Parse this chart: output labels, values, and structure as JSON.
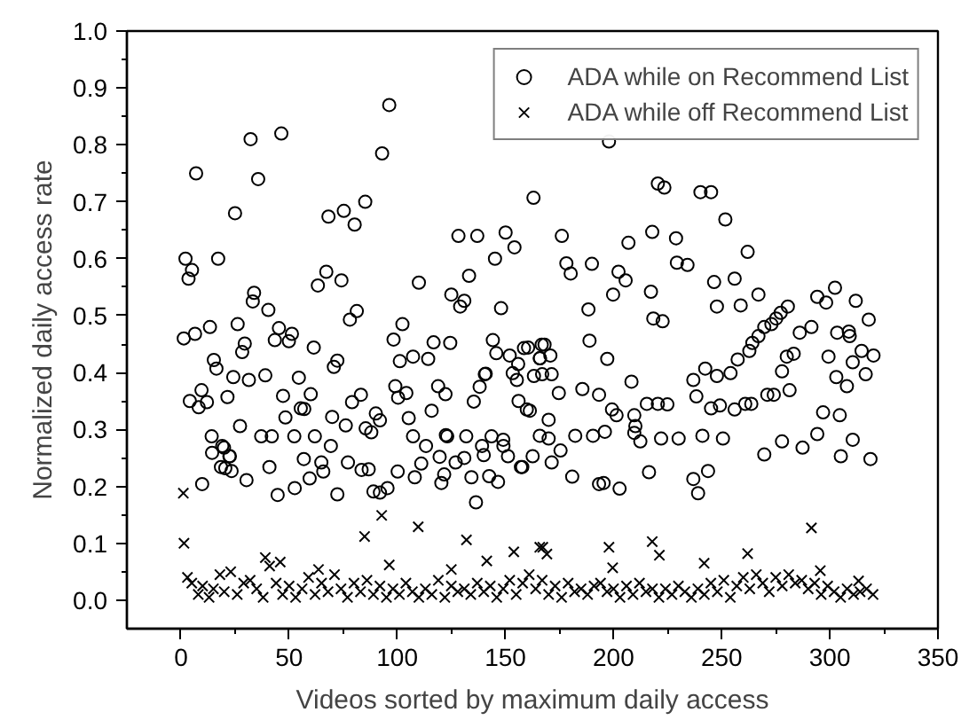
{
  "chart_data": {
    "type": "scatter",
    "xlabel": "Videos sorted by maximum daily access",
    "ylabel": "Normalized daily access rate",
    "xlim": [
      -25,
      350
    ],
    "xticks": [
      0,
      50,
      100,
      150,
      200,
      250,
      300,
      350
    ],
    "ylim": [
      -0.05,
      1.0
    ],
    "yticks": [
      {
        "value": 0,
        "label": "0.0"
      },
      0.1,
      0.2,
      0.3,
      0.4,
      0.5,
      0.6,
      0.7,
      0.8,
      0.9,
      {
        "value": 1,
        "label": "1.0"
      }
    ],
    "grid": false,
    "legend": "top right",
    "series": [
      {
        "name": "ADA while on Recommend List",
        "color": "#000000",
        "marker": "circle",
        "x": [
          96.3,
          46.4,
          32.2,
          7.0,
          93,
          35.7,
          25,
          68.2,
          75.3,
          80.3,
          85.2,
          2.1,
          5.1,
          3.5,
          17.2,
          33.8,
          33.2,
          40.4,
          67.2,
          63.3,
          74.2,
          81.3,
          78.1,
          110,
          128.3,
          137,
          150.1,
          154.2,
          145.2,
          163,
          133.2,
          125,
          129.1,
          131,
          148,
          1.3,
          6.5,
          13.4,
          26.2,
          45.3,
          43.4,
          51.3,
          49.9,
          61.4,
          29.5,
          28.3,
          15.2,
          16.4,
          24.2,
          31.4,
          39,
          54.5,
          72.3,
          70.7,
          98.3,
          102.4,
          101.2,
          107.3,
          114.3,
          116.8,
          124.5,
          144.2,
          145.8,
          152,
          158.6,
          166.8,
          166,
          171.4,
          163.2,
          155.3,
          153.4,
          140.5,
          4.1,
          9.5,
          21.5,
          8.2,
          12,
          27.3,
          47.2,
          48.3,
          55.4,
          57,
          60,
          69.9,
          76.2,
          79.1,
          83.2,
          85.4,
          90.1,
          92,
          88,
          99.1,
          104.2,
          100.4,
          105.3,
          115.9,
          118.9,
          122.3,
          122.5,
          135.4,
          138.1,
          140.9,
          156.1,
          159.9,
          161.3,
          170,
          14.2,
          19.1,
          22.4,
          37.1,
          42,
          52.4,
          61.9,
          69.3,
          107.3,
          113.3,
          123.1,
          131.9,
          139.2,
          143.6,
          149.1,
          162.6,
          9.8,
          14.4,
          19.9,
          22.6,
          18.5,
          20.5,
          23.4,
          30.3,
          40.9,
          44.7,
          52.6,
          56.8,
          59.5,
          64.9,
          65.8,
          72.3,
          77.2,
          83.5,
          86.8,
          89,
          95.5,
          92,
          100.2,
          108.1,
          111.1,
          119.6,
          120.4,
          121.7,
          127,
          131,
          134.3,
          136.4,
          140,
          142.5,
          146.6,
          149,
          151.2,
          157.2,
          197.9,
          220.5,
          223.5,
          240.2,
          245.1,
          251.7,
          176.1,
          206.9,
          217.9,
          228.9,
          178.2,
          180.2,
          190,
          229.3,
          234.2,
          262,
          202.3,
          205.6,
          199.8,
          217.3,
          218.4,
          222.7,
          246.5,
          247.8,
          256,
          258.8,
          267,
          188.4,
          188.9,
          197.1,
          208.3,
          168.1,
          165.9,
          167,
          170.8,
          160.5,
          155.9,
          174.7,
          185.6,
          193.3,
          199.3,
          201.4,
          215.4,
          209.6,
          210.1,
          220.5,
          224.9,
          236.9,
          242.4,
          247.8,
          254.1,
          257.4,
          262.8,
          264.2,
          267,
          269.7,
          273,
          275.2,
          280.6,
          277.3,
          238.3,
          245.1,
          249.2,
          256,
          260.9,
          263.7,
          271.1,
          274.1,
          281.4,
          277.9,
          280.1,
          283.3,
          286.1,
          291.5,
          294.2,
          298.3,
          302.4,
          312,
          318,
          314.7,
          320.2,
          310.6,
          316.6,
          307.9,
          304.6,
          296.9,
          303,
          309.2,
          299.4,
          303.4,
          308.8,
          165.9,
          170,
          175.5,
          182.3,
          190.5,
          196,
          209.6,
          212.4,
          222,
          230.1,
          241.1,
          250.6,
          269.7,
          277.9,
          287.4,
          294.2,
          305.1,
          310.6,
          318.8,
          180.9,
          193.3,
          195.4,
          202.8,
          216.4,
          236.9,
          239.1,
          243.7,
          171.4,
          157.8
        ],
        "values": [
          0.87,
          0.82,
          0.81,
          0.75,
          0.785,
          0.74,
          0.68,
          0.674,
          0.684,
          0.66,
          0.7,
          0.6,
          0.58,
          0.565,
          0.6,
          0.54,
          0.525,
          0.51,
          0.577,
          0.553,
          0.562,
          0.508,
          0.493,
          0.558,
          0.64,
          0.64,
          0.646,
          0.62,
          0.6,
          0.707,
          0.57,
          0.537,
          0.516,
          0.526,
          0.513,
          0.46,
          0.468,
          0.48,
          0.485,
          0.478,
          0.457,
          0.468,
          0.455,
          0.444,
          0.451,
          0.436,
          0.422,
          0.407,
          0.392,
          0.387,
          0.395,
          0.391,
          0.421,
          0.41,
          0.458,
          0.485,
          0.42,
          0.428,
          0.424,
          0.453,
          0.452,
          0.457,
          0.434,
          0.43,
          0.443,
          0.449,
          0.425,
          0.397,
          0.394,
          0.387,
          0.399,
          0.397,
          0.35,
          0.369,
          0.357,
          0.339,
          0.348,
          0.306,
          0.359,
          0.321,
          0.337,
          0.336,
          0.362,
          0.322,
          0.307,
          0.348,
          0.361,
          0.302,
          0.328,
          0.316,
          0.295,
          0.376,
          0.364,
          0.356,
          0.32,
          0.333,
          0.376,
          0.362,
          0.29,
          0.349,
          0.375,
          0.398,
          0.35,
          0.335,
          0.333,
          0.317,
          0.288,
          0.271,
          0.253,
          0.288,
          0.288,
          0.288,
          0.288,
          0.271,
          0.288,
          0.271,
          0.288,
          0.288,
          0.271,
          0.288,
          0.271,
          0.253,
          0.204,
          0.259,
          0.268,
          0.253,
          0.234,
          0.232,
          0.227,
          0.211,
          0.234,
          0.185,
          0.197,
          0.248,
          0.214,
          0.242,
          0.226,
          0.186,
          0.242,
          0.229,
          0.23,
          0.191,
          0.197,
          0.189,
          0.226,
          0.216,
          0.24,
          0.252,
          0.206,
          0.221,
          0.242,
          0.25,
          0.216,
          0.172,
          0.255,
          0.218,
          0.208,
          0.282,
          0.253,
          0.234,
          0.806,
          0.732,
          0.725,
          0.717,
          0.717,
          0.669,
          0.64,
          0.628,
          0.647,
          0.636,
          0.592,
          0.574,
          0.591,
          0.593,
          0.589,
          0.612,
          0.577,
          0.562,
          0.537,
          0.542,
          0.495,
          0.49,
          0.559,
          0.516,
          0.565,
          0.518,
          0.537,
          0.511,
          0.456,
          0.424,
          0.384,
          0.449,
          0.425,
          0.397,
          0.43,
          0.444,
          0.415,
          0.364,
          0.371,
          0.361,
          0.335,
          0.325,
          0.345,
          0.325,
          0.306,
          0.345,
          0.344,
          0.387,
          0.407,
          0.394,
          0.399,
          0.423,
          0.438,
          0.452,
          0.464,
          0.48,
          0.485,
          0.495,
          0.516,
          0.505,
          0.358,
          0.337,
          0.342,
          0.335,
          0.345,
          0.345,
          0.361,
          0.361,
          0.369,
          0.402,
          0.428,
          0.433,
          0.47,
          0.48,
          0.533,
          0.523,
          0.549,
          0.526,
          0.493,
          0.438,
          0.43,
          0.418,
          0.397,
          0.376,
          0.325,
          0.33,
          0.392,
          0.464,
          0.428,
          0.47,
          0.472,
          0.289,
          0.284,
          0.263,
          0.289,
          0.289,
          0.296,
          0.294,
          0.279,
          0.284,
          0.284,
          0.289,
          0.284,
          0.256,
          0.279,
          0.268,
          0.292,
          0.253,
          0.282,
          0.248,
          0.217,
          0.204,
          0.206,
          0.196,
          0.225,
          0.213,
          0.188,
          0.227,
          0.242,
          0.234
        ]
      },
      {
        "name": "ADA while off Recommend List",
        "color": "#000000",
        "marker": "cross",
        "x": [
          1.1,
          1.4,
          84.9,
          92.8,
          109.7,
          132,
          39,
          45.9,
          96.3,
          141.4,
          153.9,
          167.3,
          125,
          63.6,
          165.9,
          169.2,
          197.9,
          199.6,
          217.9,
          221.2,
          262,
          241.9,
          291.5,
          295.6,
          313.3,
          3,
          5,
          8,
          10,
          13,
          15,
          18,
          20,
          23,
          26,
          29,
          32,
          35,
          38,
          41,
          44,
          47,
          50,
          53,
          56,
          59,
          62,
          65,
          68,
          71,
          74,
          77,
          80,
          83,
          86,
          89,
          92,
          95,
          98,
          101,
          104,
          107,
          110,
          113,
          116,
          119,
          122,
          125,
          128,
          131,
          134,
          137,
          140,
          143,
          146,
          149,
          152,
          155,
          158,
          161,
          164,
          167,
          170,
          173,
          176,
          179,
          182,
          185,
          188,
          191,
          194,
          197,
          200,
          203,
          206,
          209,
          212,
          215,
          218,
          221,
          224,
          227,
          230,
          233,
          236,
          239,
          242,
          245,
          248,
          251,
          254,
          257,
          260,
          263,
          266,
          269,
          272,
          275,
          278,
          281,
          284,
          287,
          290,
          293,
          296,
          299,
          302,
          305,
          308,
          311,
          314,
          317,
          320
        ],
        "values": [
          0.188,
          0.1,
          0.112,
          0.149,
          0.129,
          0.106,
          0.075,
          0.067,
          0.062,
          0.069,
          0.085,
          0.093,
          0.054,
          0.054,
          0.093,
          0.081,
          0.093,
          0.057,
          0.103,
          0.079,
          0.082,
          0.065,
          0.127,
          0.052,
          0.034,
          0.04,
          0.03,
          0.01,
          0.025,
          0.005,
          0.02,
          0.045,
          0.015,
          0.05,
          0.01,
          0.03,
          0.035,
          0.02,
          0.005,
          0.06,
          0.03,
          0.01,
          0.025,
          0.005,
          0.02,
          0.04,
          0.01,
          0.03,
          0.015,
          0.045,
          0.02,
          0.005,
          0.03,
          0.015,
          0.035,
          0.01,
          0.025,
          0.005,
          0.02,
          0.01,
          0.03,
          0.015,
          0.005,
          0.02,
          0.01,
          0.035,
          0.005,
          0.025,
          0.015,
          0.02,
          0.01,
          0.03,
          0.015,
          0.025,
          0.005,
          0.02,
          0.035,
          0.01,
          0.03,
          0.045,
          0.02,
          0.035,
          0.01,
          0.025,
          0.005,
          0.03,
          0.015,
          0.02,
          0.01,
          0.025,
          0.03,
          0.015,
          0.02,
          0.005,
          0.025,
          0.01,
          0.03,
          0.015,
          0.02,
          0.005,
          0.02,
          0.01,
          0.025,
          0.015,
          0.005,
          0.02,
          0.01,
          0.03,
          0.015,
          0.035,
          0.005,
          0.025,
          0.04,
          0.02,
          0.045,
          0.03,
          0.015,
          0.04,
          0.025,
          0.045,
          0.03,
          0.035,
          0.02,
          0.03,
          0.01,
          0.025,
          0.015,
          0.005,
          0.02,
          0.01,
          0.015,
          0.02,
          0.01
        ]
      }
    ]
  }
}
